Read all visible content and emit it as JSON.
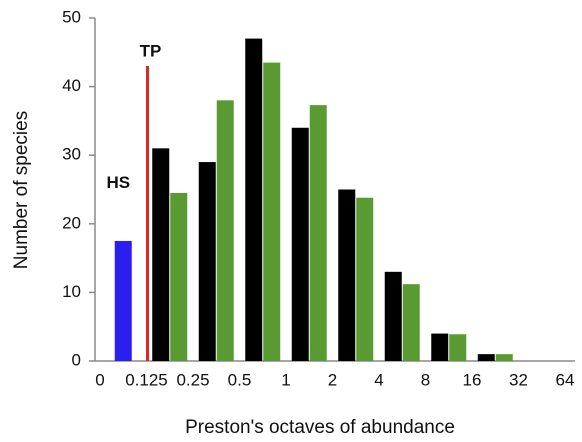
{
  "chart_data": {
    "type": "bar",
    "ylabel": "Number of species",
    "xlabel": "Preston's octaves of abundance",
    "xticks": [
      0,
      0.125,
      0.25,
      0.5,
      1,
      2,
      4,
      8,
      16,
      32,
      64
    ],
    "ylim": [
      0,
      50
    ],
    "yticks": [
      0,
      10,
      20,
      30,
      40,
      50
    ],
    "series": [
      {
        "color": "#2b1ff0",
        "values": [
          17.5,
          null,
          null,
          null,
          null,
          null,
          null,
          null,
          null,
          null
        ]
      },
      {
        "color": "#000000",
        "values": [
          null,
          31,
          29,
          47,
          34,
          25,
          13,
          4,
          1,
          null
        ]
      },
      {
        "color": "#5a9a32",
        "values": [
          null,
          24.5,
          38,
          43.5,
          37.3,
          23.8,
          11.2,
          3.9,
          1,
          null
        ]
      }
    ],
    "annotations": [
      {
        "text": "HS",
        "x": 0,
        "y": 25
      }
    ],
    "tp_line": {
      "label": "TP",
      "x": 0.125,
      "top": 43,
      "color": "#e0262b"
    }
  }
}
